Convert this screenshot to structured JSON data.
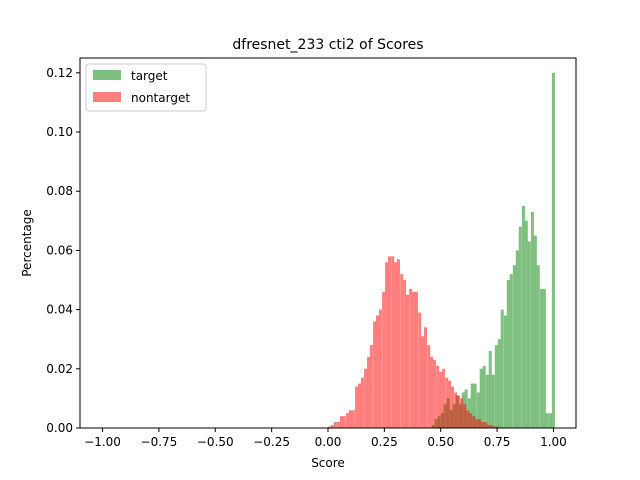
{
  "chart_data": {
    "type": "bar",
    "title": "dfresnet_233 cti2 of Scores",
    "xlabel": "Score",
    "ylabel": "Percentage",
    "xlim": [
      -1.1,
      1.1
    ],
    "ylim": [
      0,
      0.125
    ],
    "xticks": [
      "−1.00",
      "−0.75",
      "−0.50",
      "−0.25",
      "0.00",
      "0.25",
      "0.50",
      "0.75",
      "1.00"
    ],
    "xtick_values": [
      -1.0,
      -0.75,
      -0.5,
      -0.25,
      0.0,
      0.25,
      0.5,
      0.75,
      1.0
    ],
    "yticks": [
      "0.00",
      "0.02",
      "0.04",
      "0.06",
      "0.08",
      "0.10",
      "0.12"
    ],
    "ytick_values": [
      0.0,
      0.02,
      0.04,
      0.06,
      0.08,
      0.1,
      0.12
    ],
    "grid": false,
    "legend": {
      "position": "top-left"
    },
    "bin_width": 0.0133,
    "series": [
      {
        "name": "target",
        "color": "#008000",
        "opacity": 0.5,
        "x": [
          0.46,
          0.473,
          0.486,
          0.5,
          0.513,
          0.526,
          0.54,
          0.553,
          0.566,
          0.58,
          0.593,
          0.606,
          0.62,
          0.633,
          0.646,
          0.66,
          0.673,
          0.686,
          0.7,
          0.713,
          0.726,
          0.74,
          0.753,
          0.766,
          0.78,
          0.793,
          0.806,
          0.82,
          0.833,
          0.846,
          0.86,
          0.873,
          0.886,
          0.9,
          0.913,
          0.926,
          0.94,
          0.953,
          0.966,
          0.98,
          0.993
        ],
        "values": [
          0.001,
          0.003,
          0.004,
          0.005,
          0.008,
          0.01,
          0.006,
          0.008,
          0.011,
          0.008,
          0.012,
          0.013,
          0.01,
          0.015,
          0.015,
          0.012,
          0.02,
          0.021,
          0.018,
          0.026,
          0.018,
          0.028,
          0.03,
          0.04,
          0.038,
          0.05,
          0.052,
          0.055,
          0.06,
          0.068,
          0.075,
          0.07,
          0.063,
          0.073,
          0.065,
          0.055,
          0.047,
          0.047,
          0.005,
          0.005,
          0.12
        ]
      },
      {
        "name": "nontarget",
        "color": "#ff0000",
        "opacity": 0.5,
        "x": [
          0.0,
          0.013,
          0.026,
          0.04,
          0.053,
          0.066,
          0.08,
          0.093,
          0.106,
          0.12,
          0.133,
          0.146,
          0.16,
          0.173,
          0.186,
          0.2,
          0.213,
          0.226,
          0.24,
          0.253,
          0.266,
          0.28,
          0.293,
          0.306,
          0.32,
          0.333,
          0.346,
          0.36,
          0.373,
          0.386,
          0.4,
          0.413,
          0.426,
          0.44,
          0.453,
          0.466,
          0.48,
          0.493,
          0.506,
          0.52,
          0.533,
          0.546,
          0.56,
          0.573,
          0.586,
          0.6,
          0.613,
          0.626,
          0.64,
          0.653,
          0.666,
          0.68,
          0.693,
          0.706,
          0.72,
          0.733,
          0.746
        ],
        "values": [
          0.0005,
          0.001,
          0.002,
          0.002,
          0.004,
          0.004,
          0.005,
          0.006,
          0.006,
          0.014,
          0.015,
          0.017,
          0.02,
          0.024,
          0.028,
          0.036,
          0.038,
          0.04,
          0.046,
          0.056,
          0.058,
          0.058,
          0.056,
          0.057,
          0.052,
          0.05,
          0.045,
          0.047,
          0.046,
          0.046,
          0.039,
          0.031,
          0.034,
          0.028,
          0.024,
          0.023,
          0.021,
          0.019,
          0.02,
          0.017,
          0.016,
          0.014,
          0.012,
          0.011,
          0.01,
          0.008,
          0.006,
          0.005,
          0.004,
          0.003,
          0.003,
          0.002,
          0.002,
          0.001,
          0.001,
          0.0005,
          0.0005
        ]
      }
    ]
  }
}
